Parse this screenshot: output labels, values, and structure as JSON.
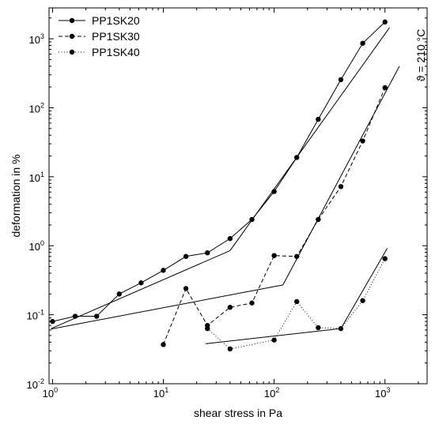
{
  "chart_data": {
    "type": "line",
    "title": "",
    "xlabel": "shear stress in Pa",
    "ylabel": "deformation in %",
    "xscale": "log",
    "yscale": "log",
    "xlim": [
      0.93,
      2400
    ],
    "ylim": [
      0.01,
      2800
    ],
    "x_ticks": [
      {
        "base": "10",
        "exp": "0"
      },
      {
        "base": "10",
        "exp": "1"
      },
      {
        "base": "10",
        "exp": "2"
      },
      {
        "base": "10",
        "exp": "3"
      }
    ],
    "y_ticks": [
      {
        "base": "10",
        "exp": "-2"
      },
      {
        "base": "10",
        "exp": "-1"
      },
      {
        "base": "10",
        "exp": "0"
      },
      {
        "base": "10",
        "exp": "1"
      },
      {
        "base": "10",
        "exp": "2"
      },
      {
        "base": "10",
        "exp": "3"
      }
    ],
    "annotation": "ϑ = 210 °C",
    "legend_position": "top-left",
    "grid": false,
    "series": [
      {
        "name": "PP1SK20",
        "line_style": "solid",
        "x": [
          1.0,
          1.6,
          2.5,
          4.0,
          6.3,
          10,
          16,
          25,
          40,
          63,
          100,
          160,
          250,
          400,
          630,
          1000
        ],
        "y": [
          0.08,
          0.095,
          0.095,
          0.2,
          0.29,
          0.44,
          0.7,
          0.79,
          1.27,
          2.4,
          6.1,
          19,
          68,
          255,
          860,
          1750
        ]
      },
      {
        "name": "PP1SK30",
        "line_style": "dashed",
        "x": [
          10,
          16,
          25,
          40,
          63,
          100,
          160,
          250,
          400,
          630,
          1000
        ],
        "y": [
          0.037,
          0.24,
          0.07,
          0.128,
          0.148,
          0.72,
          0.7,
          2.4,
          7.2,
          33,
          195
        ]
      },
      {
        "name": "PP1SK40",
        "line_style": "dotted",
        "x": [
          25,
          40,
          100,
          160,
          250,
          400,
          630,
          1000
        ],
        "y": [
          0.063,
          0.032,
          0.043,
          0.155,
          0.065,
          0.063,
          0.16,
          0.65
        ]
      }
    ],
    "fit_lines": [
      {
        "x": [
          0.97,
          40
        ],
        "y": [
          0.063,
          0.85
        ]
      },
      {
        "x": [
          40,
          1100
        ],
        "y": [
          0.85,
          1450
        ]
      },
      {
        "x": [
          0.97,
          120
        ],
        "y": [
          0.062,
          0.27
        ]
      },
      {
        "x": [
          120,
          1350
        ],
        "y": [
          0.27,
          400
        ]
      },
      {
        "x": [
          24,
          400
        ],
        "y": [
          0.038,
          0.063
        ]
      },
      {
        "x": [
          400,
          1050
        ],
        "y": [
          0.063,
          0.92
        ]
      }
    ]
  }
}
